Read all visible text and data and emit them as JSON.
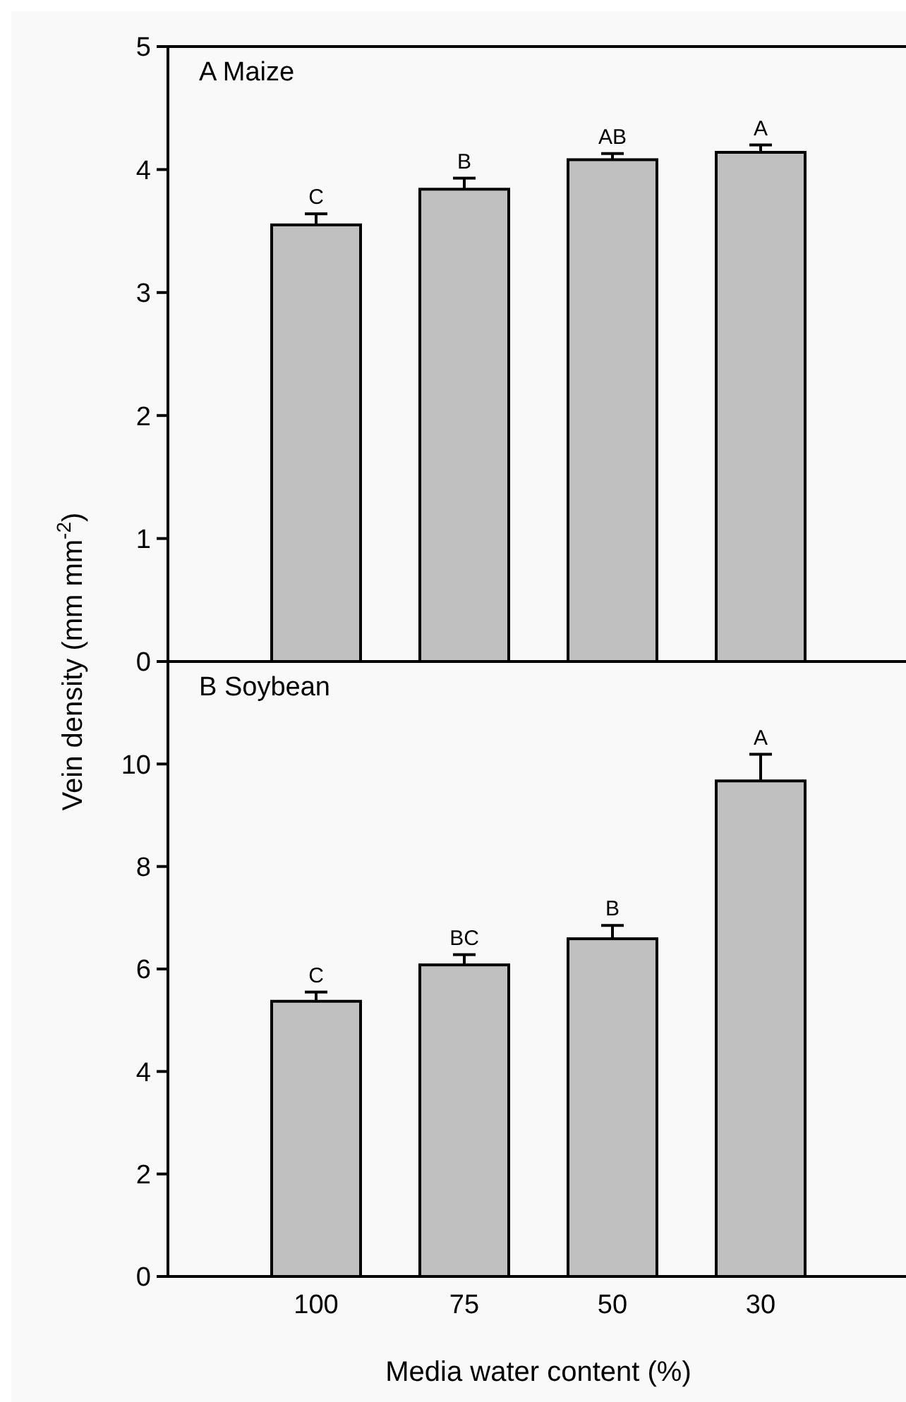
{
  "chart_data": [
    {
      "type": "bar",
      "title": "A Maize",
      "ylabel": "Vein density (mm mm$^{-2}$)",
      "categories": [
        "100",
        "75",
        "50",
        "30"
      ],
      "values": [
        3.55,
        3.84,
        4.08,
        4.14
      ],
      "color": "#c0c0c0",
      "errors": [
        [
          3.55,
          3.64
        ],
        [
          3.84,
          3.93
        ],
        [
          4.08,
          4.13
        ],
        [
          4.14,
          4.2
        ]
      ],
      "ylim": [
        0,
        5
      ],
      "yticks": [
        0,
        1,
        2,
        3,
        4,
        5
      ],
      "tick_labels": "y",
      "annotations": [
        {
          "text": "C",
          "x": "100",
          "y": 3.64
        },
        {
          "text": "B",
          "x": "75",
          "y": 3.93
        },
        {
          "text": "AB",
          "x": "50",
          "y": 4.13
        },
        {
          "text": "A",
          "x": "30",
          "y": 4.2
        }
      ]
    },
    {
      "type": "bar",
      "title": "B Soybean",
      "xlabel": "Media water content (%)",
      "categories": [
        "100",
        "75",
        "50",
        "30"
      ],
      "values": [
        5.37,
        6.08,
        6.59,
        9.67
      ],
      "color": "#c0c0c0",
      "errors": [
        [
          5.37,
          5.55
        ],
        [
          6.08,
          6.28
        ],
        [
          6.59,
          6.85
        ],
        [
          9.67,
          10.19
        ]
      ],
      "ylim": [
        0,
        12
      ],
      "yticks": [
        0,
        2,
        4,
        6,
        8,
        10
      ],
      "annotations": [
        {
          "text": "C",
          "x": "100",
          "y": 5.55
        },
        {
          "text": "BC",
          "x": "75",
          "y": 6.28
        },
        {
          "text": "B",
          "x": "50",
          "y": 6.85
        },
        {
          "text": "A",
          "x": "30",
          "y": 10.19
        }
      ]
    }
  ]
}
